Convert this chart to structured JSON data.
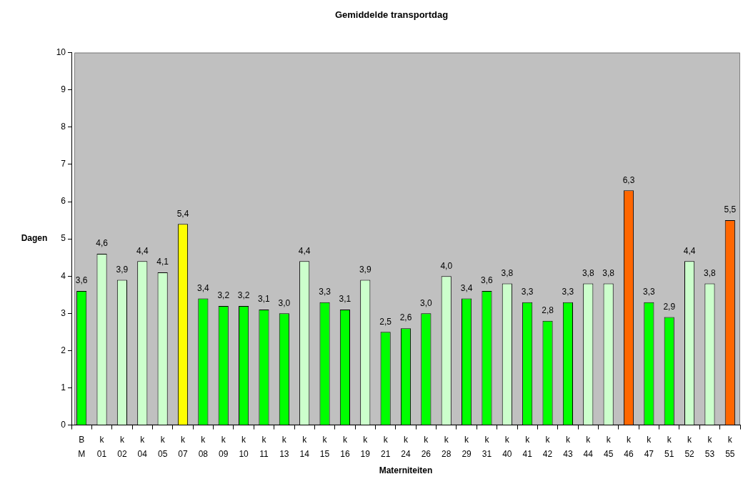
{
  "chart_data": {
    "type": "bar",
    "title": "Gemiddelde transportdag",
    "xlabel": "Materniteiten",
    "ylabel": "Dagen",
    "categories": [
      "B M",
      "k 01",
      "k 02",
      "k 04",
      "k 05",
      "k 07",
      "k 08",
      "k 09",
      "k 10",
      "k 11",
      "k 13",
      "k 14",
      "k 15",
      "k 16",
      "k 19",
      "k 21",
      "k 24",
      "k 26",
      "k 28",
      "k 29",
      "k 31",
      "k 40",
      "k 41",
      "k 42",
      "k 43",
      "k 44",
      "k 45",
      "k 46",
      "k 47",
      "k 51",
      "k 52",
      "k 53",
      "k 55"
    ],
    "values": [
      3.6,
      4.6,
      3.9,
      4.4,
      4.1,
      5.4,
      3.4,
      3.2,
      3.2,
      3.1,
      3.0,
      4.4,
      3.3,
      3.1,
      3.9,
      2.5,
      2.6,
      3.0,
      4.0,
      3.4,
      3.6,
      3.8,
      3.3,
      2.8,
      3.3,
      3.8,
      3.8,
      6.3,
      3.3,
      2.9,
      4.4,
      3.8,
      5.5
    ],
    "colors": [
      "#00ff00",
      "#ccffcc",
      "#ccffcc",
      "#ccffcc",
      "#ccffcc",
      "#ffff00",
      "#00ff00",
      "#00ff00",
      "#00ff00",
      "#00ff00",
      "#00ff00",
      "#ccffcc",
      "#00ff00",
      "#00ff00",
      "#ccffcc",
      "#00ff00",
      "#00ff00",
      "#00ff00",
      "#ccffcc",
      "#00ff00",
      "#00ff00",
      "#ccffcc",
      "#00ff00",
      "#00ff00",
      "#00ff00",
      "#ccffcc",
      "#ccffcc",
      "#ff6600",
      "#00ff00",
      "#00ff00",
      "#ccffcc",
      "#ccffcc",
      "#ff6600"
    ],
    "value_labels": [
      "3,6",
      "4,6",
      "3,9",
      "4,4",
      "4,1",
      "5,4",
      "3,4",
      "3,2",
      "3,2",
      "3,1",
      "3,0",
      "4,4",
      "3,3",
      "3,1",
      "3,9",
      "2,5",
      "2,6",
      "3,0",
      "4,0",
      "3,4",
      "3,6",
      "3,8",
      "3,3",
      "2,8",
      "3,3",
      "3,8",
      "3,8",
      "6,3",
      "3,3",
      "2,9",
      "4,4",
      "3,8",
      "5,5"
    ],
    "ylim": [
      0,
      10
    ],
    "yticks": [
      0,
      1,
      2,
      3,
      4,
      5,
      6,
      7,
      8,
      9,
      10
    ]
  }
}
